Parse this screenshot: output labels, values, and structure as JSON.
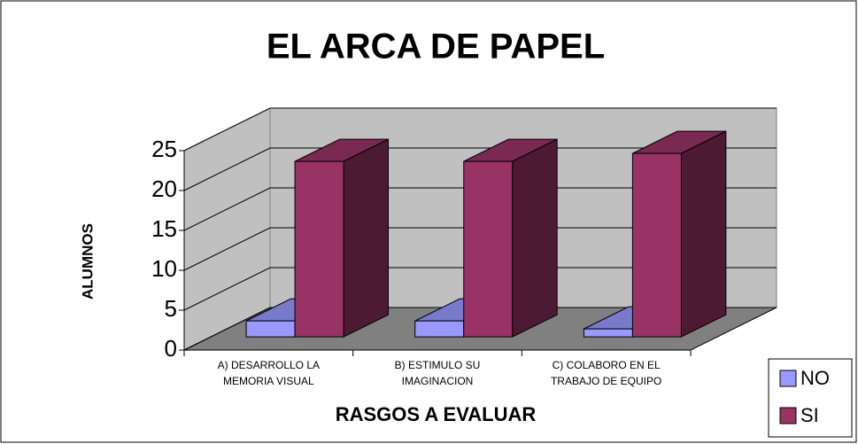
{
  "chart_data": {
    "type": "bar3d",
    "title": "EL ARCA DE PAPEL",
    "x_label": "RASGOS A EVALUAR",
    "y_label": "ALUMNOS",
    "categories": [
      "A) DESARROLLO LA MEMORIA VISUAL",
      "B) ESTIMULO SU IMAGINACION",
      "C) COLABORO EN EL TRABAJO DE EQUIPO"
    ],
    "series": [
      {
        "name": "NO",
        "color": "#9999ff",
        "values": [
          2,
          2,
          1
        ]
      },
      {
        "name": "SI",
        "color": "#993366",
        "values": [
          22,
          22,
          23
        ]
      }
    ],
    "ylim": [
      0,
      25
    ],
    "yticks": [
      0,
      5,
      10,
      15,
      20,
      25
    ],
    "grid": true,
    "legend": "right"
  }
}
